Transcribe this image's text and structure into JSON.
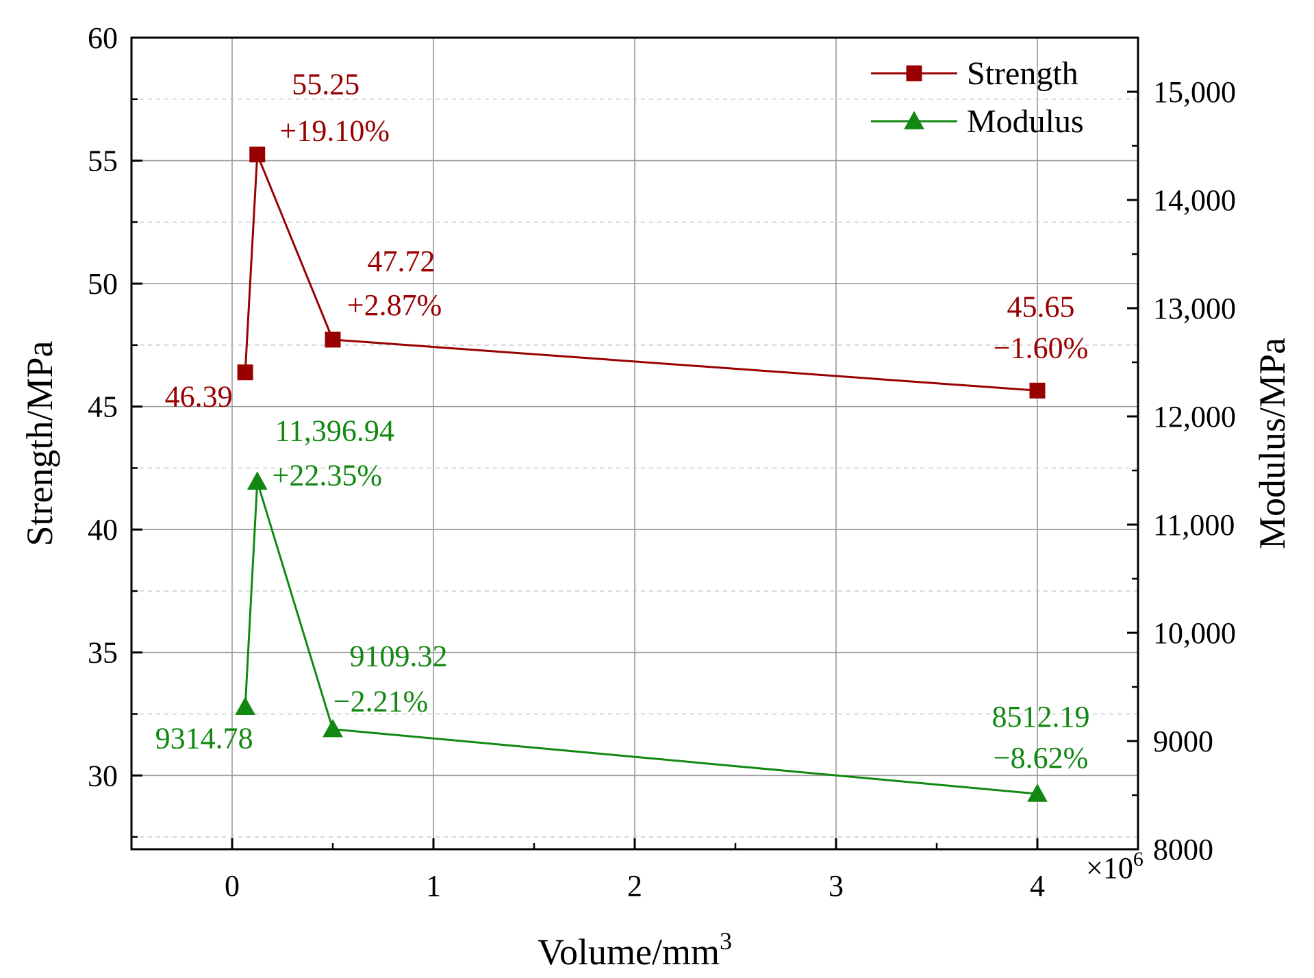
{
  "chart_data": {
    "type": "line",
    "xlabel": "Volume/mm",
    "xlabel_superscript": "3",
    "ylabel_left": "Strength/MPa",
    "ylabel_right": "Modulus/MPa",
    "x_multiplier": "×10",
    "x_multiplier_superscript": "6",
    "xlim": [
      -0.5,
      4.5
    ],
    "ylim_left": [
      27,
      60
    ],
    "ylim_right": [
      8000,
      15500
    ],
    "x_ticks": [
      0,
      1,
      2,
      3,
      4
    ],
    "x_tick_labels": [
      "0",
      "1",
      "2",
      "3",
      "4"
    ],
    "y_left_ticks": [
      30,
      35,
      40,
      45,
      50,
      55,
      60
    ],
    "y_left_tick_labels": [
      "30",
      "35",
      "40",
      "45",
      "50",
      "55",
      "60"
    ],
    "y_right_ticks": [
      8000,
      9000,
      10000,
      11000,
      12000,
      13000,
      14000,
      15000
    ],
    "y_right_tick_labels": [
      "8000",
      "9000",
      "10,000",
      "11,000",
      "12,000",
      "13,000",
      "14,000",
      "15,000"
    ],
    "grid": true,
    "legend_position": "top-right",
    "series": [
      {
        "name": "Strength",
        "axis": "left",
        "color": "#990000",
        "marker": "square",
        "x": [
          0.065,
          0.125,
          0.5,
          4.0
        ],
        "values": [
          46.39,
          55.25,
          47.72,
          45.65
        ],
        "labels": [
          {
            "value": "46.39",
            "change": ""
          },
          {
            "value": "55.25",
            "change": "+19.10%"
          },
          {
            "value": "47.72",
            "change": "+2.87%"
          },
          {
            "value": "45.65",
            "change": "−1.60%"
          }
        ]
      },
      {
        "name": "Modulus",
        "axis": "right",
        "color": "#118811",
        "marker": "triangle",
        "x": [
          0.065,
          0.125,
          0.5,
          4.0
        ],
        "values": [
          9314.78,
          11396.94,
          9109.32,
          8512.19
        ],
        "labels": [
          {
            "value": "9314.78",
            "change": ""
          },
          {
            "value": "11,396.94",
            "change": "+22.35%"
          },
          {
            "value": "9109.32",
            "change": "−2.21%"
          },
          {
            "value": "8512.19",
            "change": "−8.62%"
          }
        ]
      }
    ]
  }
}
